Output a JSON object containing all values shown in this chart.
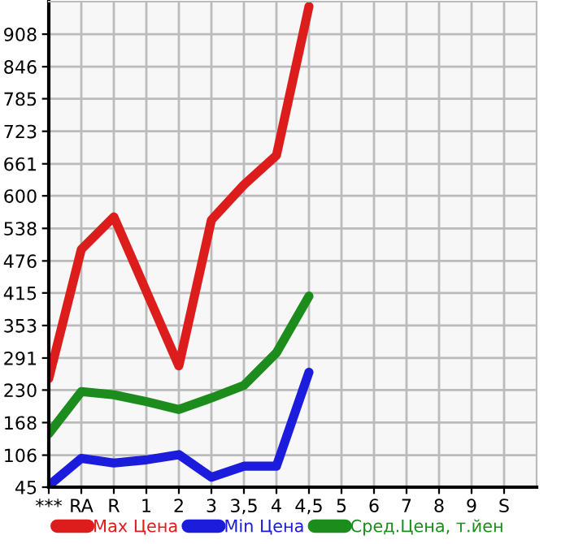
{
  "chart_data": {
    "type": "line",
    "categories": [
      "***",
      "RA",
      "R",
      "1",
      "2",
      "3",
      "3,5",
      "4",
      "4,5",
      "5",
      "6",
      "7",
      "8",
      "9",
      "S"
    ],
    "series": [
      {
        "name": "Max Цена",
        "color": "#dd1c1c",
        "values": [
          252,
          498,
          560,
          418,
          276,
          554,
          621,
          677,
          961,
          null,
          null,
          null,
          null,
          null,
          null
        ]
      },
      {
        "name": "Min Цена",
        "color": "#1c1cdd",
        "values": [
          48,
          100,
          91,
          97,
          107,
          64,
          85,
          85,
          264,
          null,
          null,
          null,
          null,
          null,
          null
        ]
      },
      {
        "name": "Сред.Цена, т.йен",
        "color": "#1c8c1c",
        "values": [
          147,
          227,
          221,
          208,
          193,
          215,
          239,
          301,
          409,
          null,
          null,
          null,
          null,
          null,
          null
        ]
      }
    ],
    "ylim": [
      45,
      970
    ],
    "yticks": [
      45,
      106,
      168,
      230,
      291,
      353,
      415,
      476,
      538,
      600,
      661,
      723,
      785,
      846,
      908
    ],
    "grid": true,
    "legend": "bottom",
    "marker": "none",
    "line_style": "solid"
  }
}
